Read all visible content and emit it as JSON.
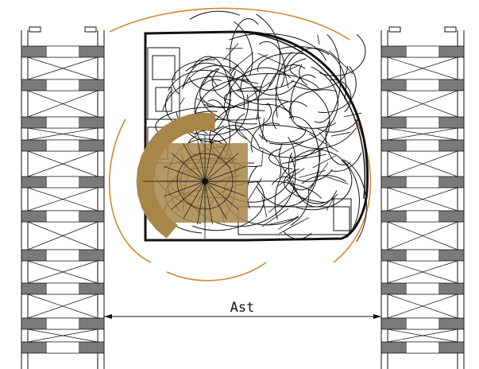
{
  "dimension": {
    "label": "Ast"
  },
  "colors": {
    "line": "#111111",
    "rack_fill": "#7a7a7a",
    "swept_arc": "#d4862f",
    "carriage": "#a8864a",
    "background": "#ffffff"
  },
  "components": {
    "racks": [
      "left-rack",
      "right-rack"
    ],
    "vehicle": "turret-truck-top-view",
    "dimension": "aisle-width-dimension"
  }
}
